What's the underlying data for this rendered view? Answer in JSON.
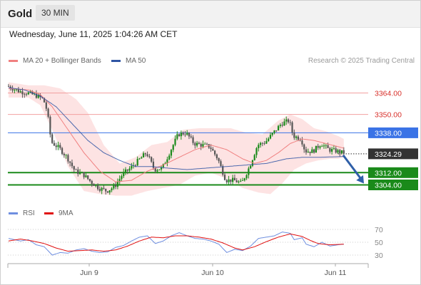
{
  "header": {
    "symbol": "Gold",
    "interval": "30 MIN",
    "datetime": "Wednesday, June 11, 2025 1:04:26 AM CET"
  },
  "legend": {
    "ma20_label": "MA 20 + Bollinger Bands",
    "ma50_label": "MA 50",
    "credit": "Research © 2025 Trading Central",
    "rsi_label": "RSI",
    "rsi_ma_label": "9MA"
  },
  "colors": {
    "ma20": "#f08080",
    "ma50": "#2f55a4",
    "band_fill": "#fde0e0",
    "support_green": "#1a8a1a",
    "blue_level": "#3a73e6",
    "candle_up": "#1a8a1a",
    "candle_down": "#555555",
    "rsi_line": "#6f8fe0",
    "rsi_ma": "#e01010"
  },
  "chart_data": [
    {
      "type": "candlestick",
      "title": "Gold",
      "interval": "30 MIN",
      "y_range": [
        3292,
        3374
      ],
      "last_price": 3324.29,
      "levels": [
        {
          "value": 3364.0,
          "label": "3364.00",
          "style": "red-line"
        },
        {
          "value": 3350.0,
          "label": "3350.00",
          "style": "red-line"
        },
        {
          "value": 3338.0,
          "label": "3338.00",
          "style": "blue-line"
        },
        {
          "value": 3312.0,
          "label": "3312.00",
          "style": "green-line"
        },
        {
          "value": 3304.0,
          "label": "3304.00",
          "style": "green-line"
        }
      ],
      "current_price_label": "3324.29",
      "forecast_arrow": {
        "from": 3324.3,
        "to": 3304.0,
        "direction": "down"
      },
      "x_ticks": [
        "Jun 9",
        "Jun 10",
        "Jun 11"
      ],
      "anchors": [
        [
          0,
          3368.5
        ],
        [
          6,
          3365.0
        ],
        [
          10,
          3364.0
        ],
        [
          14,
          3362.5
        ],
        [
          18,
          3360.0
        ],
        [
          20,
          3352.0
        ],
        [
          22,
          3332.0
        ],
        [
          26,
          3328.0
        ],
        [
          30,
          3322.0
        ],
        [
          34,
          3313.0
        ],
        [
          38,
          3311.0
        ],
        [
          42,
          3306.0
        ],
        [
          46,
          3302.0
        ],
        [
          50,
          3300.0
        ],
        [
          54,
          3303.0
        ],
        [
          58,
          3311.0
        ],
        [
          62,
          3315.0
        ],
        [
          66,
          3320.0
        ],
        [
          70,
          3325.0
        ],
        [
          74,
          3314.0
        ],
        [
          78,
          3315.0
        ],
        [
          82,
          3326.0
        ],
        [
          86,
          3337.0
        ],
        [
          90,
          3338.0
        ],
        [
          94,
          3331.0
        ],
        [
          98,
          3330.0
        ],
        [
          102,
          3329.0
        ],
        [
          106,
          3321.0
        ],
        [
          110,
          3307.0
        ],
        [
          114,
          3307.0
        ],
        [
          118,
          3305.0
        ],
        [
          122,
          3316.0
        ],
        [
          126,
          3330.0
        ],
        [
          130,
          3332.0
        ],
        [
          134,
          3338.0
        ],
        [
          138,
          3344.0
        ],
        [
          142,
          3346.0
        ],
        [
          144,
          3336.0
        ],
        [
          148,
          3334.0
        ],
        [
          150,
          3326.0
        ],
        [
          154,
          3326.0
        ],
        [
          158,
          3331.0
        ],
        [
          162,
          3327.0
        ],
        [
          166,
          3326.0
        ],
        [
          169,
          3325.0
        ]
      ],
      "ma20": [
        [
          0,
          3367
        ],
        [
          10,
          3366
        ],
        [
          16,
          3363
        ],
        [
          22,
          3355
        ],
        [
          30,
          3340
        ],
        [
          38,
          3325
        ],
        [
          46,
          3313
        ],
        [
          54,
          3306
        ],
        [
          62,
          3307
        ],
        [
          70,
          3313
        ],
        [
          78,
          3317
        ],
        [
          86,
          3322
        ],
        [
          94,
          3327
        ],
        [
          102,
          3330
        ],
        [
          110,
          3327
        ],
        [
          118,
          3321
        ],
        [
          124,
          3318
        ],
        [
          130,
          3320
        ],
        [
          136,
          3325
        ],
        [
          142,
          3331
        ],
        [
          148,
          3334
        ],
        [
          154,
          3333
        ],
        [
          160,
          3331
        ],
        [
          166,
          3329
        ],
        [
          169,
          3328
        ]
      ],
      "bollinger_upper": [
        [
          0,
          3371
        ],
        [
          10,
          3369
        ],
        [
          18,
          3369
        ],
        [
          26,
          3367
        ],
        [
          34,
          3360
        ],
        [
          40,
          3351
        ],
        [
          48,
          3330
        ],
        [
          56,
          3318
        ],
        [
          64,
          3322
        ],
        [
          72,
          3330
        ],
        [
          80,
          3332
        ],
        [
          88,
          3340
        ],
        [
          96,
          3341
        ],
        [
          104,
          3341
        ],
        [
          112,
          3341
        ],
        [
          120,
          3338
        ],
        [
          128,
          3337
        ],
        [
          136,
          3346
        ],
        [
          142,
          3350
        ],
        [
          148,
          3347
        ],
        [
          154,
          3341
        ],
        [
          160,
          3339
        ],
        [
          166,
          3336
        ],
        [
          169,
          3334
        ]
      ],
      "bollinger_lower": [
        [
          0,
          3361
        ],
        [
          10,
          3361
        ],
        [
          16,
          3356
        ],
        [
          22,
          3340
        ],
        [
          30,
          3316
        ],
        [
          38,
          3300
        ],
        [
          46,
          3298
        ],
        [
          54,
          3297
        ],
        [
          62,
          3297
        ],
        [
          70,
          3300
        ],
        [
          78,
          3302
        ],
        [
          86,
          3304
        ],
        [
          94,
          3310
        ],
        [
          102,
          3312
        ],
        [
          110,
          3308
        ],
        [
          118,
          3302
        ],
        [
          126,
          3299
        ],
        [
          132,
          3298
        ],
        [
          138,
          3305
        ],
        [
          144,
          3314
        ],
        [
          150,
          3318
        ],
        [
          156,
          3320
        ],
        [
          162,
          3321
        ],
        [
          166,
          3321
        ],
        [
          169,
          3322
        ]
      ],
      "ma50": [
        [
          0,
          3367.5
        ],
        [
          8,
          3366
        ],
        [
          16,
          3362
        ],
        [
          24,
          3355
        ],
        [
          32,
          3344
        ],
        [
          40,
          3333
        ],
        [
          48,
          3325
        ],
        [
          56,
          3320
        ],
        [
          64,
          3316
        ],
        [
          72,
          3316
        ],
        [
          80,
          3315
        ],
        [
          90,
          3314
        ],
        [
          100,
          3315
        ],
        [
          110,
          3316
        ],
        [
          120,
          3317
        ],
        [
          130,
          3318
        ],
        [
          140,
          3321
        ],
        [
          148,
          3322
        ],
        [
          156,
          3322
        ],
        [
          169,
          3322.5
        ]
      ]
    },
    {
      "type": "line",
      "title": "RSI",
      "series": [
        {
          "name": "RSI"
        },
        {
          "name": "9MA"
        }
      ],
      "y_range": [
        20,
        80
      ],
      "y_ticks": [
        70,
        50,
        30
      ],
      "rsi": [
        [
          0,
          56
        ],
        [
          6,
          52
        ],
        [
          10,
          54
        ],
        [
          14,
          46
        ],
        [
          18,
          43
        ],
        [
          22,
          30
        ],
        [
          26,
          34
        ],
        [
          30,
          33
        ],
        [
          34,
          38
        ],
        [
          38,
          40
        ],
        [
          42,
          36
        ],
        [
          46,
          34
        ],
        [
          50,
          35
        ],
        [
          54,
          42
        ],
        [
          58,
          45
        ],
        [
          62,
          52
        ],
        [
          66,
          58
        ],
        [
          70,
          60
        ],
        [
          74,
          48
        ],
        [
          78,
          52
        ],
        [
          82,
          60
        ],
        [
          86,
          65
        ],
        [
          90,
          60
        ],
        [
          94,
          56
        ],
        [
          98,
          55
        ],
        [
          102,
          52
        ],
        [
          106,
          47
        ],
        [
          110,
          34
        ],
        [
          114,
          39
        ],
        [
          118,
          37
        ],
        [
          122,
          44
        ],
        [
          126,
          56
        ],
        [
          130,
          58
        ],
        [
          134,
          60
        ],
        [
          138,
          66
        ],
        [
          142,
          64
        ],
        [
          144,
          54
        ],
        [
          148,
          57
        ],
        [
          150,
          47
        ],
        [
          154,
          43
        ],
        [
          158,
          50
        ],
        [
          162,
          44
        ],
        [
          166,
          46
        ],
        [
          169,
          47
        ]
      ],
      "rsi_ma": [
        [
          0,
          52
        ],
        [
          6,
          55
        ],
        [
          12,
          52
        ],
        [
          18,
          48
        ],
        [
          24,
          41
        ],
        [
          30,
          36
        ],
        [
          36,
          37
        ],
        [
          42,
          38
        ],
        [
          48,
          36
        ],
        [
          54,
          38
        ],
        [
          60,
          44
        ],
        [
          66,
          52
        ],
        [
          72,
          58
        ],
        [
          78,
          57
        ],
        [
          84,
          60
        ],
        [
          90,
          60
        ],
        [
          96,
          58
        ],
        [
          102,
          55
        ],
        [
          108,
          49
        ],
        [
          114,
          41
        ],
        [
          118,
          38
        ],
        [
          124,
          43
        ],
        [
          130,
          51
        ],
        [
          136,
          58
        ],
        [
          142,
          63
        ],
        [
          148,
          59
        ],
        [
          152,
          53
        ],
        [
          156,
          48
        ],
        [
          162,
          46
        ],
        [
          169,
          47
        ]
      ]
    }
  ]
}
